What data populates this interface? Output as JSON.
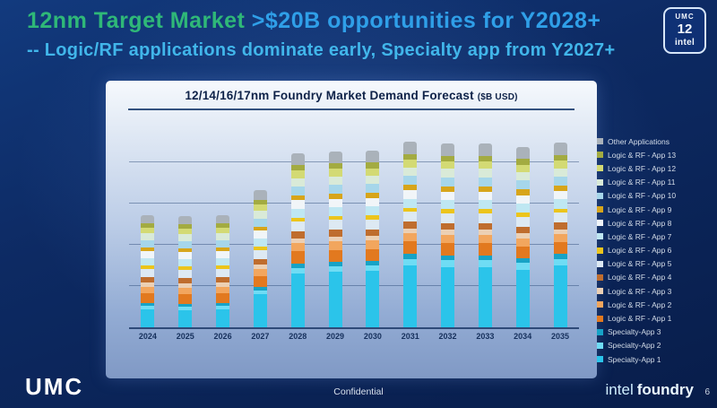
{
  "slide": {
    "title_part1": "12nm Target Market",
    "title_part2": ">$20B opportunities for Y2028+",
    "subtitle": "-- Logic/RF applications dominate early, Specialty app from Y2027+",
    "corner_badge": {
      "line1": "UMC",
      "line2": "12",
      "line3": "intel"
    },
    "footer": {
      "left_logo": "UMC",
      "center": "Confidential",
      "brand_intel": "intel",
      "brand_foundry": "foundry",
      "page_number": "6"
    }
  },
  "chart_data": {
    "type": "bar",
    "stacked": true,
    "title": "12/14/16/17nm Foundry Market Demand Forecast",
    "title_suffix": "($B USD)",
    "xlabel": "",
    "ylabel": "",
    "ylim": [
      0,
      25
    ],
    "gridline_step": 5,
    "grid": true,
    "legend_position": "right",
    "legend_order": "top-of-stack-first",
    "categories": [
      "2024",
      "2025",
      "2026",
      "2027",
      "2028",
      "2029",
      "2030",
      "2031",
      "2032",
      "2033",
      "2034",
      "2035"
    ],
    "series": [
      {
        "name": "Specialty-App 1",
        "color": "#2bc4ea",
        "values": [
          2.2,
          2.1,
          2.2,
          4.0,
          6.5,
          6.7,
          6.8,
          7.5,
          7.3,
          7.3,
          7.0,
          7.5
        ]
      },
      {
        "name": "Specialty-App 2",
        "color": "#6fdcf4",
        "values": [
          0.4,
          0.4,
          0.4,
          0.5,
          0.7,
          0.7,
          0.7,
          0.8,
          0.8,
          0.8,
          0.8,
          0.8
        ]
      },
      {
        "name": "Specialty-App 3",
        "color": "#17a3c6",
        "values": [
          0.3,
          0.3,
          0.3,
          0.4,
          0.5,
          0.5,
          0.5,
          0.6,
          0.6,
          0.6,
          0.6,
          0.6
        ]
      },
      {
        "name": "Logic & RF - App 1",
        "color": "#e2791f",
        "values": [
          1.2,
          1.2,
          1.2,
          1.3,
          1.5,
          1.5,
          1.5,
          1.5,
          1.5,
          1.5,
          1.4,
          1.4
        ]
      },
      {
        "name": "Logic & RF - App 2",
        "color": "#f2a65e",
        "values": [
          0.8,
          0.8,
          0.8,
          0.9,
          1.0,
          1.0,
          1.0,
          1.0,
          1.0,
          1.0,
          1.0,
          1.0
        ]
      },
      {
        "name": "Logic & RF - App 3",
        "color": "#ecd0b4",
        "values": [
          0.5,
          0.5,
          0.5,
          0.5,
          0.6,
          0.6,
          0.6,
          0.6,
          0.6,
          0.6,
          0.6,
          0.6
        ]
      },
      {
        "name": "Logic & RF - App 4",
        "color": "#bf6d2e",
        "values": [
          0.7,
          0.7,
          0.7,
          0.7,
          0.8,
          0.8,
          0.8,
          0.8,
          0.8,
          0.8,
          0.8,
          0.8
        ]
      },
      {
        "name": "Logic & RF - App 5",
        "color": "#dde9f3",
        "values": [
          1.0,
          1.0,
          1.0,
          1.1,
          1.2,
          1.2,
          1.2,
          1.2,
          1.2,
          1.2,
          1.2,
          1.2
        ]
      },
      {
        "name": "Logic & RF - App 6",
        "color": "#ecc51c",
        "values": [
          0.4,
          0.4,
          0.4,
          0.4,
          0.5,
          0.5,
          0.5,
          0.5,
          0.5,
          0.5,
          0.5,
          0.5
        ]
      },
      {
        "name": "Logic & RF - App 7",
        "color": "#bfe7f2",
        "values": [
          0.9,
          0.9,
          0.9,
          1.0,
          1.1,
          1.1,
          1.1,
          1.1,
          1.1,
          1.1,
          1.1,
          1.1
        ]
      },
      {
        "name": "Logic & RF - App 8",
        "color": "#f1f5f8",
        "values": [
          0.8,
          0.8,
          0.8,
          0.9,
          1.0,
          1.0,
          1.0,
          1.0,
          1.0,
          1.0,
          1.0,
          1.0
        ]
      },
      {
        "name": "Logic & RF - App 9",
        "color": "#d7a51a",
        "values": [
          0.5,
          0.5,
          0.5,
          0.5,
          0.6,
          0.6,
          0.6,
          0.7,
          0.7,
          0.7,
          0.7,
          0.7
        ]
      },
      {
        "name": "Logic & RF - App 10",
        "color": "#a6d6ea",
        "values": [
          0.9,
          0.9,
          0.9,
          1.0,
          1.1,
          1.1,
          1.1,
          1.1,
          1.1,
          1.1,
          1.1,
          1.1
        ]
      },
      {
        "name": "Logic & RF - App 11",
        "color": "#d9ead8",
        "values": [
          0.8,
          0.8,
          0.8,
          0.9,
          1.0,
          1.0,
          1.0,
          1.0,
          1.0,
          1.0,
          1.0,
          1.0
        ]
      },
      {
        "name": "Logic & RF - App 12",
        "color": "#d3da74",
        "values": [
          0.7,
          0.7,
          0.7,
          0.8,
          0.9,
          0.9,
          0.9,
          0.9,
          0.9,
          0.9,
          0.9,
          0.9
        ]
      },
      {
        "name": "Logic & RF - App 13",
        "color": "#a3ab41",
        "values": [
          0.5,
          0.5,
          0.5,
          0.6,
          0.7,
          0.7,
          0.7,
          0.7,
          0.7,
          0.7,
          0.7,
          0.7
        ]
      },
      {
        "name": "Other Applications",
        "color": "#aab2ba",
        "values": [
          1.0,
          1.0,
          1.0,
          1.2,
          1.4,
          1.4,
          1.4,
          1.5,
          1.5,
          1.5,
          1.5,
          1.5
        ]
      }
    ]
  }
}
